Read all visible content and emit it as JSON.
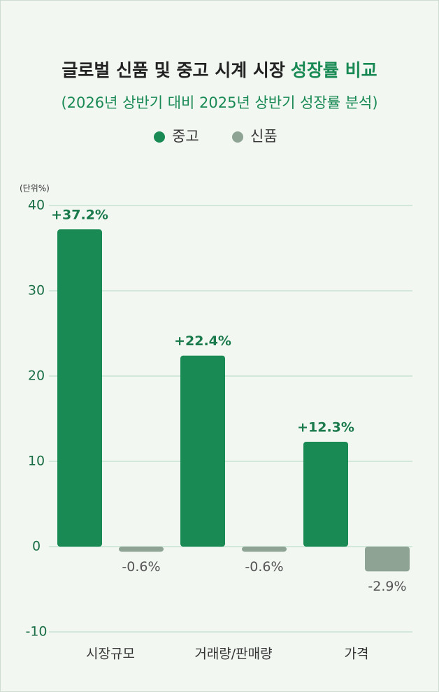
{
  "chart_data": {
    "type": "bar",
    "title": "글로벌 신품 및 중고 시계 시장",
    "title_highlight": "성장률 비교",
    "subtitle": "(2026년 상반기 대비 2025년 상반기 성장률 분석)",
    "unit_label": "(단위%)",
    "categories": [
      "시장규모",
      "거래량/판매량",
      "가격"
    ],
    "series": [
      {
        "name": "중고",
        "color": "#1a8a55",
        "values": [
          37.2,
          22.4,
          12.3
        ],
        "value_labels": [
          "+37.2%",
          "+22.4%",
          "+12.3%"
        ]
      },
      {
        "name": "신품",
        "color": "#8ea394",
        "values": [
          -0.6,
          -0.6,
          -2.9
        ],
        "value_labels": [
          "-0.6%",
          "-0.6%",
          "-2.9%"
        ]
      }
    ],
    "ylim": [
      -10,
      40
    ],
    "yticks": [
      -10,
      0,
      10,
      20,
      30,
      40
    ],
    "grid": true,
    "legend": "top"
  }
}
